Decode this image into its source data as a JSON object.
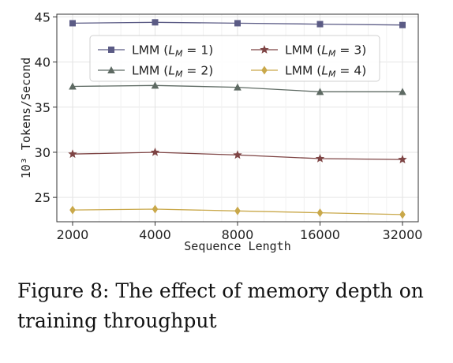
{
  "chart_data": {
    "type": "line",
    "xlabel": "Sequence Length",
    "ylabel": "10³ Tokens/Second",
    "x_scale": "log2",
    "categories": [
      "2000",
      "4000",
      "8000",
      "16000",
      "32000"
    ],
    "x": [
      2000,
      4000,
      8000,
      16000,
      32000
    ],
    "ylim": [
      22.3,
      45.3
    ],
    "yticks": [
      25,
      30,
      35,
      40,
      45
    ],
    "grid": true,
    "legend_position": "top",
    "series": [
      {
        "name": "LMM (L_M = 1)",
        "label_main": "LMM (",
        "label_var": "L",
        "label_sub": "M",
        "label_rest": " = 1)",
        "marker": "square",
        "color": "#5b5b85",
        "values": [
          44.3,
          44.4,
          44.3,
          44.2,
          44.1
        ]
      },
      {
        "name": "LMM (L_M = 2)",
        "label_main": "LMM (",
        "label_var": "L",
        "label_sub": "M",
        "label_rest": " = 2)",
        "marker": "triangle",
        "color": "#5e6a63",
        "values": [
          37.3,
          37.4,
          37.2,
          36.7,
          36.7
        ]
      },
      {
        "name": "LMM (L_M = 3)",
        "label_main": "LMM (",
        "label_var": "L",
        "label_sub": "M",
        "label_rest": " = 3)",
        "marker": "star",
        "color": "#7e4444",
        "values": [
          29.8,
          30.0,
          29.7,
          29.3,
          29.2
        ]
      },
      {
        "name": "LMM (L_M = 4)",
        "label_main": "LMM (",
        "label_var": "L",
        "label_sub": "M",
        "label_rest": " = 4)",
        "marker": "diamond",
        "color": "#c9a84a",
        "values": [
          23.6,
          23.7,
          23.5,
          23.3,
          23.1
        ]
      }
    ]
  },
  "caption": "Figure 8: The effect of memory depth on training throughput"
}
